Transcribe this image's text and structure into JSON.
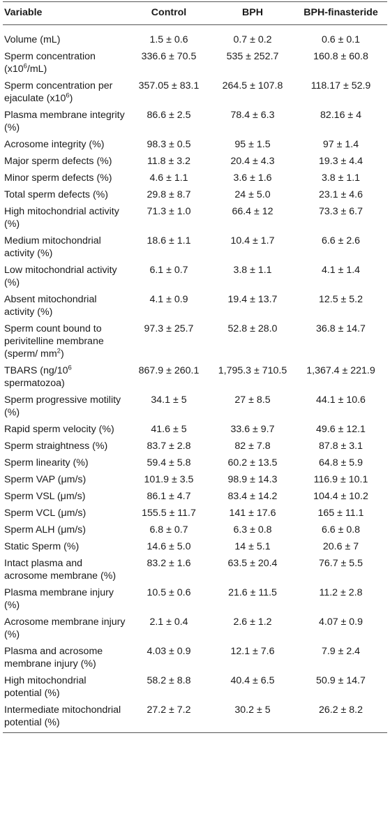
{
  "header": {
    "variable": "Variable",
    "control": "Control",
    "bph": "BPH",
    "bph_finasteride": "BPH-finasteride"
  },
  "rows": [
    {
      "label": [
        "Volume (mL)"
      ],
      "control": "1.5 ± 0.6",
      "bph": "0.7 ± 0.2",
      "fin": "0.6 ± 0.1"
    },
    {
      "label": [
        "Sperm concentration (x10",
        "6",
        "/mL)"
      ],
      "control": "336.6 ± 70.5",
      "bph": "535 ± 252.7",
      "fin": "160.8 ± 60.8"
    },
    {
      "label": [
        "Sperm concentration per ejaculate (x10",
        "6",
        ")"
      ],
      "control": "357.05 ± 83.1",
      "bph": "264.5 ± 107.8",
      "fin": "118.17 ± 52.9"
    },
    {
      "label": [
        "Plasma membrane integrity (%)"
      ],
      "control": "86.6 ± 2.5",
      "bph": "78.4 ± 6.3",
      "fin": "82.16 ± 4"
    },
    {
      "label": [
        "Acrosome integrity (%)"
      ],
      "control": "98.3 ± 0.5",
      "bph": "95 ± 1.5",
      "fin": "97 ± 1.4"
    },
    {
      "label": [
        "Major sperm defects (%)"
      ],
      "control": "11.8 ± 3.2",
      "bph": "20.4 ± 4.3",
      "fin": "19.3 ± 4.4"
    },
    {
      "label": [
        "Minor sperm defects (%)"
      ],
      "control": "4.6 ± 1.1",
      "bph": "3.6 ± 1.6",
      "fin": "3.8 ± 1.1"
    },
    {
      "label": [
        "Total sperm defects (%)"
      ],
      "control": "29.8 ± 8.7",
      "bph": "24 ± 5.0",
      "fin": "23.1 ± 4.6"
    },
    {
      "label": [
        "High mitochondrial activity (%)"
      ],
      "control": "71.3 ± 1.0",
      "bph": "66.4 ± 12",
      "fin": "73.3 ± 6.7"
    },
    {
      "label": [
        "Medium mitochondrial activity (%)"
      ],
      "control": "18.6 ± 1.1",
      "bph": "10.4 ± 1.7",
      "fin": "6.6 ± 2.6"
    },
    {
      "label": [
        "Low mitochondrial activity (%)"
      ],
      "control": "6.1 ± 0.7",
      "bph": "3.8 ± 1.1",
      "fin": "4.1 ± 1.4"
    },
    {
      "label": [
        "Absent mitochondrial activity (%)"
      ],
      "control": "4.1 ± 0.9",
      "bph": "19.4 ± 13.7",
      "fin": "12.5 ± 5.2"
    },
    {
      "label": [
        "Sperm count bound to perivitelline membrane (sperm/ mm",
        "2",
        ")"
      ],
      "control": "97.3 ± 25.7",
      "bph": "52.8 ± 28.0",
      "fin": "36.8 ± 14.7"
    },
    {
      "label": [
        "TBARS (ng/10",
        "6",
        " spermatozoa)"
      ],
      "control": "867.9 ± 260.1",
      "bph": "1,795.3 ± 710.5",
      "fin": "1,367.4 ± 221.9"
    },
    {
      "label": [
        "Sperm progressive motility (%)"
      ],
      "control": "34.1 ± 5",
      "bph": "27 ± 8.5",
      "fin": "44.1 ± 10.6"
    },
    {
      "label": [
        "Rapid sperm velocity (%)"
      ],
      "control": "41.6 ± 5",
      "bph": "33.6 ± 9.7",
      "fin": "49.6 ± 12.1"
    },
    {
      "label": [
        "Sperm straightness (%)"
      ],
      "control": "83.7 ± 2.8",
      "bph": "82 ± 7.8",
      "fin": "87.8 ± 3.1"
    },
    {
      "label": [
        "Sperm linearity (%)"
      ],
      "control": "59.4 ± 5.8",
      "bph": "60.2 ± 13.5",
      "fin": "64.8 ± 5.9"
    },
    {
      "label": [
        "Sperm VAP (μm/s)"
      ],
      "control": "101.9 ± 3.5",
      "bph": "98.9 ± 14.3",
      "fin": "116.9 ± 10.1"
    },
    {
      "label": [
        "Sperm VSL (μm/s)"
      ],
      "control": "86.1 ± 4.7",
      "bph": "83.4 ± 14.2",
      "fin": "104.4 ± 10.2"
    },
    {
      "label": [
        "Sperm VCL (μm/s)"
      ],
      "control": "155.5 ± 11.7",
      "bph": "141 ± 17.6",
      "fin": "165 ± 11.1"
    },
    {
      "label": [
        "Sperm ALH (μm/s)"
      ],
      "control": "6.8 ± 0.7",
      "bph": "6.3 ± 0.8",
      "fin": "6.6 ± 0.8"
    },
    {
      "label": [
        "Static Sperm (%)"
      ],
      "control": "14.6 ± 5.0",
      "bph": "14 ± 5.1",
      "fin": "20.6 ± 7"
    },
    {
      "label": [
        "Intact plasma and acrosome membrane (%)"
      ],
      "control": "83.2 ± 1.6",
      "bph": "63.5 ± 20.4",
      "fin": "76.7 ± 5.5"
    },
    {
      "label": [
        "Plasma membrane injury (%)"
      ],
      "control": "10.5 ± 0.6",
      "bph": "21.6 ± 11.5",
      "fin": "11.2 ± 2.8"
    },
    {
      "label": [
        "Acrosome membrane injury (%)"
      ],
      "control": "2.1 ± 0.4",
      "bph": "2.6 ± 1.2",
      "fin": "4.07 ± 0.9"
    },
    {
      "label": [
        "Plasma and acrosome membrane injury (%)"
      ],
      "control": "4.03 ± 0.9",
      "bph": "12.1 ± 7.6",
      "fin": "7.9 ± 2.4"
    },
    {
      "label": [
        "High mitochondrial potential (%)"
      ],
      "control": "58.2 ± 8.8",
      "bph": "40.4 ± 6.5",
      "fin": "50.9 ± 14.7"
    },
    {
      "label": [
        "Intermediate mitochondrial potential (%)"
      ],
      "control": "27.2 ± 7.2",
      "bph": "30.2 ± 5",
      "fin": "26.2 ± 8.2"
    }
  ]
}
